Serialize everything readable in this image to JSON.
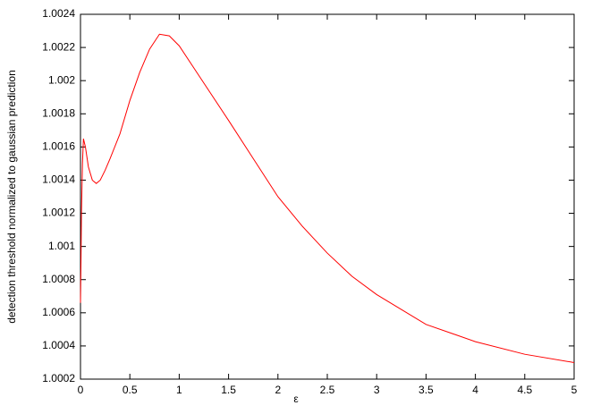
{
  "chart_data": {
    "type": "line",
    "xlabel": "ε",
    "ylabel": "detection threshold normalized to gaussian prediction",
    "x": [
      0,
      0.005,
      0.01,
      0.02,
      0.03,
      0.05,
      0.08,
      0.12,
      0.16,
      0.2,
      0.25,
      0.3,
      0.4,
      0.5,
      0.6,
      0.7,
      0.8,
      0.9,
      1,
      1.2,
      1.5,
      1.75,
      2,
      2.25,
      2.5,
      2.75,
      3,
      3.5,
      4,
      4.5,
      5
    ],
    "series": [
      {
        "color": "#ff0000",
        "values": [
          1.00066,
          1.0009,
          1.0012,
          1.0015,
          1.00165,
          1.0016,
          1.00148,
          1.0014,
          1.00138,
          1.0014,
          1.00146,
          1.00153,
          1.00168,
          1.00188,
          1.00205,
          1.00219,
          1.00228,
          1.00227,
          1.00221,
          1.00203,
          1.00176,
          1.00153,
          1.0013,
          1.00112,
          1.00096,
          1.00082,
          1.00071,
          1.00053,
          1.000426,
          1.00035,
          1.0003
        ]
      }
    ],
    "xlim": [
      0,
      5
    ],
    "ylim": [
      1.0002,
      1.0024
    ],
    "xticks": [
      0,
      0.5,
      1,
      1.5,
      2,
      2.5,
      3,
      3.5,
      4,
      4.5,
      5
    ],
    "yticks": [
      1.0002,
      1.0004,
      1.0006,
      1.0008,
      1.001,
      1.0012,
      1.0014,
      1.0016,
      1.0018,
      1.002,
      1.0022,
      1.0024
    ]
  }
}
